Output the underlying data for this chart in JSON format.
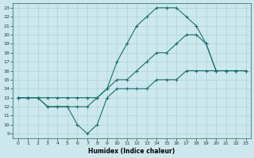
{
  "xlabel": "Humidex (Indice chaleur)",
  "bg_color": "#cce8ec",
  "grid_color": "#aad4d8",
  "line_color": "#1a7070",
  "xlim": [
    -0.5,
    23.5
  ],
  "ylim": [
    8.5,
    23.5
  ],
  "xticks": [
    0,
    1,
    2,
    3,
    4,
    5,
    6,
    7,
    8,
    9,
    10,
    11,
    12,
    13,
    14,
    15,
    16,
    17,
    18,
    19,
    20,
    21,
    22,
    23
  ],
  "yticks": [
    9,
    10,
    11,
    12,
    13,
    14,
    15,
    16,
    17,
    18,
    19,
    20,
    21,
    22,
    23
  ],
  "line1_x": [
    0,
    1,
    2,
    3,
    4,
    5,
    6,
    7,
    8,
    9,
    10,
    11,
    12,
    13,
    14,
    15,
    16,
    17,
    18,
    19,
    20,
    21,
    22,
    23
  ],
  "line1_y": [
    13,
    13,
    13,
    12,
    12,
    12,
    12,
    12,
    13,
    14,
    17,
    19,
    21,
    22,
    23,
    23,
    23,
    22,
    21,
    19,
    16,
    16,
    16,
    16
  ],
  "line2_x": [
    0,
    1,
    2,
    3,
    4,
    5,
    6,
    7,
    8,
    9,
    10,
    11,
    12,
    13,
    14,
    15,
    16,
    17,
    18,
    19,
    20,
    21,
    22,
    23
  ],
  "line2_y": [
    13,
    13,
    13,
    13,
    13,
    13,
    13,
    13,
    13,
    14,
    15,
    15,
    16,
    17,
    18,
    18,
    19,
    20,
    20,
    19,
    16,
    16,
    16,
    16
  ],
  "line3_x": [
    0,
    1,
    2,
    3,
    4,
    5,
    6,
    7,
    8,
    9,
    10,
    11,
    12,
    13,
    14,
    15,
    16,
    17,
    18,
    19,
    20,
    21,
    22,
    23
  ],
  "line3_y": [
    13,
    13,
    13,
    12,
    12,
    12,
    10,
    9,
    10,
    13,
    14,
    14,
    14,
    14,
    15,
    15,
    15,
    16,
    16,
    16,
    16,
    16,
    16,
    16
  ]
}
